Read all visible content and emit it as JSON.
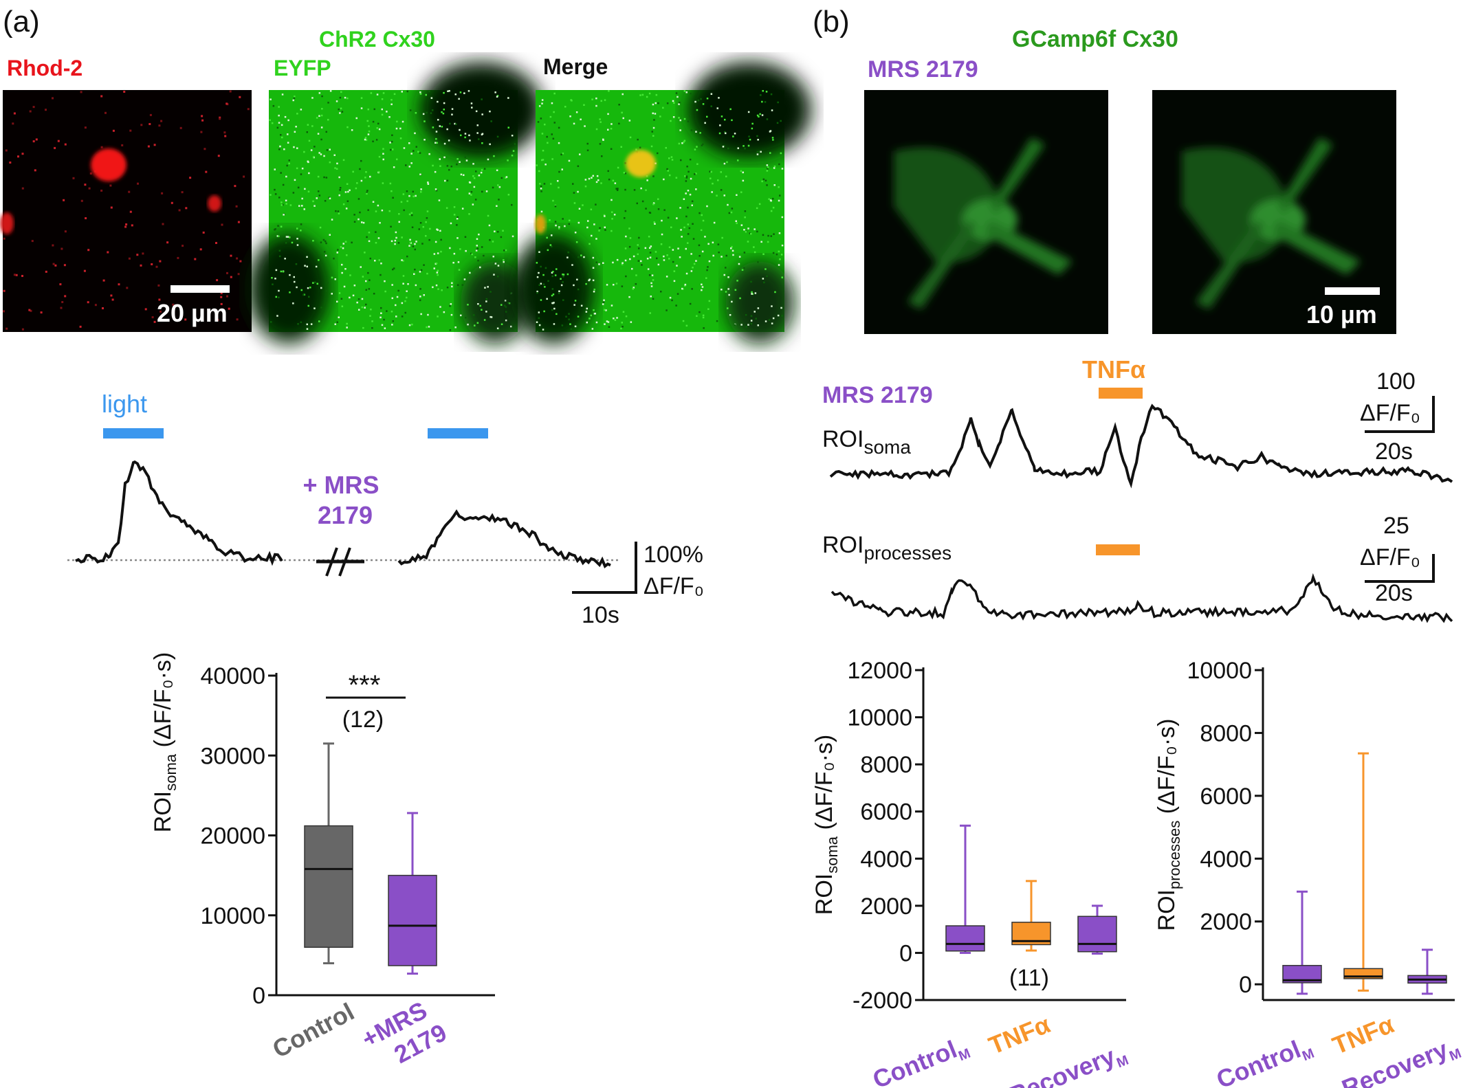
{
  "colors": {
    "red": "#e8141c",
    "green": "#30d21e",
    "darkgreen": "#2b9a1e",
    "purple": "#8a4fc7",
    "orange": "#f7952b",
    "blue": "#3b97ee",
    "gray": "#676767",
    "black": "#111111"
  },
  "panel_a": {
    "label": "(a)",
    "img_labels": {
      "rhod": "Rhod-2",
      "chr2": "ChR2 Cx30",
      "eyfp": "EYFP",
      "merge": "Merge"
    },
    "scalebar": "20 µm",
    "light": "light",
    "mrs_line1": "+ MRS",
    "mrs_line2": "2179",
    "scale_y": "100%",
    "scale_unit": "ΔF/F₀",
    "scale_x": "10s",
    "sig": "***",
    "n": "(12)",
    "ylabel_main": "ROI",
    "ylabel_sub": "soma",
    "ylabel_unit": "(ΔF/F₀·s)",
    "cat1": "Control",
    "cat2_line1": "+MRS",
    "cat2_line2": "2179"
  },
  "panel_b": {
    "label": "(b)",
    "title": "GCamp6f Cx30",
    "mrs": "MRS 2179",
    "scalebar": "10 µm",
    "tnf": "TNFα",
    "mrs_trace": "MRS 2179",
    "roi_main": "ROI",
    "soma_sub": "soma",
    "proc_sub": "processes",
    "scale1_y": "100",
    "scale_unit": "ΔF/F₀",
    "scale_x": "20s",
    "scale2_y": "25",
    "n": "(11)",
    "ylabel_unit": "(ΔF/F₀·s)",
    "cat_control": "Control",
    "cat_tnf": "TNFα",
    "cat_recovery": "Recovery",
    "cat_sub": "M"
  },
  "chart_data": [
    {
      "type": "box",
      "panel": "a",
      "ylim": [
        0,
        40000
      ],
      "yticks": [
        0,
        10000,
        20000,
        30000,
        40000
      ],
      "categories": [
        "Control",
        "+MRS 2179"
      ],
      "boxes": [
        {
          "min": 4000,
          "q1": 6000,
          "median": 15800,
          "q3": 21200,
          "max": 31500,
          "color": "#676767"
        },
        {
          "min": 2700,
          "q1": 3700,
          "median": 8700,
          "q3": 15000,
          "max": 22800,
          "color": "#8a4fc7"
        }
      ],
      "annotations": [
        "***",
        "(12)"
      ]
    },
    {
      "type": "box",
      "panel": "b-soma",
      "ylim": [
        -2000,
        12000
      ],
      "yticks": [
        -2000,
        0,
        2000,
        4000,
        6000,
        8000,
        10000,
        12000
      ],
      "categories": [
        "ControlM",
        "TNFα",
        "RecoveryM"
      ],
      "boxes": [
        {
          "min": 0,
          "q1": 80,
          "median": 380,
          "q3": 1150,
          "max": 5400,
          "color": "#8a4fc7"
        },
        {
          "min": 100,
          "q1": 350,
          "median": 500,
          "q3": 1300,
          "max": 3050,
          "color": "#f7952b"
        },
        {
          "min": -30,
          "q1": 50,
          "median": 380,
          "q3": 1550,
          "max": 2000,
          "color": "#8a4fc7"
        }
      ],
      "annotations": [
        "(11)"
      ]
    },
    {
      "type": "box",
      "panel": "b-processes",
      "ylim": [
        -500,
        10000
      ],
      "yticks": [
        0,
        2000,
        4000,
        6000,
        8000,
        10000
      ],
      "categories": [
        "ControlM",
        "TNFα",
        "RecoveryM"
      ],
      "boxes": [
        {
          "min": -300,
          "q1": 50,
          "median": 130,
          "q3": 600,
          "max": 2950,
          "color": "#8a4fc7"
        },
        {
          "min": -200,
          "q1": 180,
          "median": 250,
          "q3": 500,
          "max": 7350,
          "color": "#f7952b"
        },
        {
          "min": -300,
          "q1": 40,
          "median": 150,
          "q3": 280,
          "max": 1100,
          "color": "#8a4fc7"
        }
      ]
    }
  ]
}
